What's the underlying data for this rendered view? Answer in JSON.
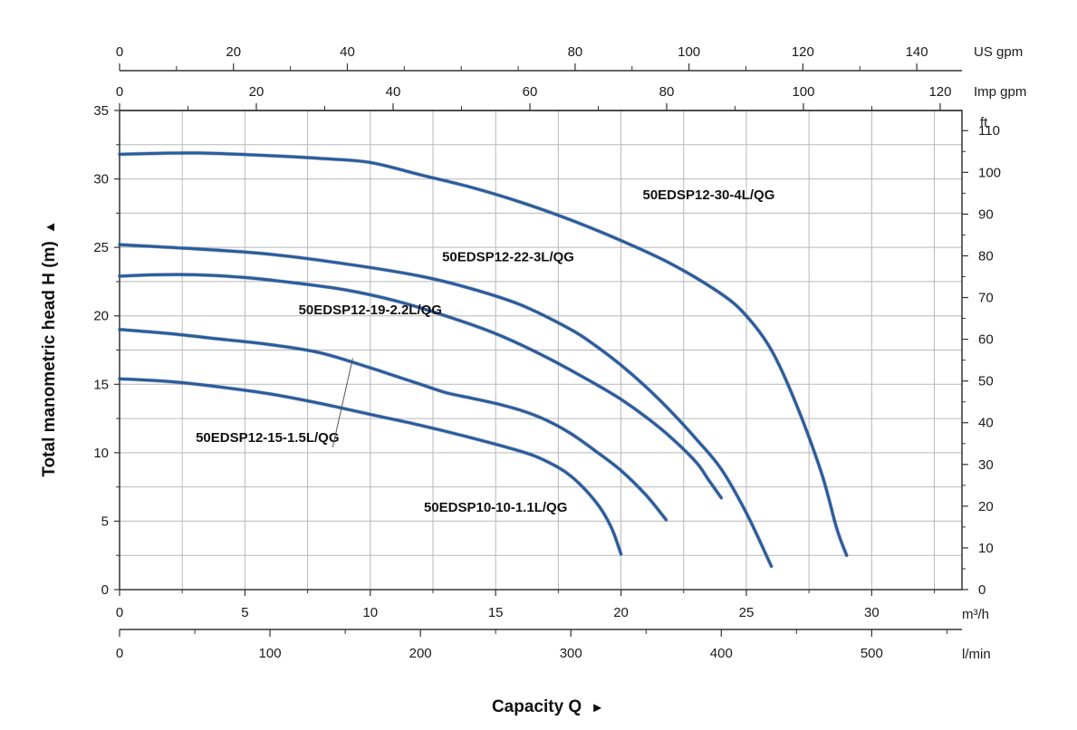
{
  "chart_data": {
    "type": "line",
    "title": "",
    "ylabel": "Total manometric head H (m)",
    "xlabel": "Capacity Q",
    "xlim": [
      0,
      33.6
    ],
    "ylim": [
      0,
      35
    ],
    "grid": true,
    "axes": {
      "x_primary": {
        "unit": "m³/h",
        "ticks": [
          0,
          5,
          10,
          15,
          20,
          25,
          30
        ],
        "minor_step": 2.5
      },
      "x_lmin": {
        "unit": "l/min",
        "ticks": [
          0,
          100,
          200,
          300,
          400,
          500
        ],
        "minor_step": 50,
        "factor": 16.6667
      },
      "x_us_gpm": {
        "unit": "US gpm",
        "ticks": [
          0,
          20,
          40,
          80,
          100,
          120,
          140
        ],
        "minor_step": 10,
        "factor": 4.4029
      },
      "x_imp_gpm": {
        "unit": "Imp gpm",
        "ticks": [
          0,
          20,
          40,
          60,
          80,
          100,
          120
        ],
        "minor_step": 10,
        "factor": 3.6662
      },
      "y_primary": {
        "unit": "m",
        "ticks": [
          0,
          5,
          10,
          15,
          20,
          25,
          30,
          35
        ],
        "minor_step": 2.5
      },
      "y_ft": {
        "unit": "ft",
        "ticks": [
          0,
          10,
          20,
          30,
          40,
          50,
          60,
          70,
          80,
          90,
          100,
          110
        ],
        "factor": 3.2808
      }
    },
    "series": [
      {
        "name": "50EDSP12-30-4L/QG",
        "label_at": [
          23.5,
          28.5
        ],
        "points": [
          [
            0,
            31.8
          ],
          [
            3,
            31.9
          ],
          [
            6,
            31.7
          ],
          [
            8,
            31.5
          ],
          [
            10,
            31.2
          ],
          [
            12,
            30.3
          ],
          [
            14,
            29.4
          ],
          [
            16,
            28.3
          ],
          [
            18,
            27.0
          ],
          [
            20,
            25.5
          ],
          [
            22,
            23.8
          ],
          [
            24,
            21.6
          ],
          [
            25,
            20.0
          ],
          [
            26,
            17.5
          ],
          [
            27,
            13.5
          ],
          [
            28,
            8.5
          ],
          [
            28.6,
            4.5
          ],
          [
            29,
            2.5
          ]
        ]
      },
      {
        "name": "50EDSP12-22-3L/QG",
        "label_at": [
          15.5,
          24.0
        ],
        "points": [
          [
            0,
            25.2
          ],
          [
            3,
            24.9
          ],
          [
            6,
            24.5
          ],
          [
            9,
            23.8
          ],
          [
            12,
            22.9
          ],
          [
            14,
            22.0
          ],
          [
            16,
            20.8
          ],
          [
            18,
            19.0
          ],
          [
            19,
            17.8
          ],
          [
            20,
            16.4
          ],
          [
            21,
            14.8
          ],
          [
            22,
            13.0
          ],
          [
            23,
            11.0
          ],
          [
            24,
            8.8
          ],
          [
            25,
            5.6
          ],
          [
            26,
            1.7
          ]
        ]
      },
      {
        "name": "50EDSP12-19-2.2L/QG",
        "label_at": [
          10,
          20.1
        ],
        "points": [
          [
            0,
            22.9
          ],
          [
            1.5,
            23.0
          ],
          [
            3,
            23.0
          ],
          [
            5,
            22.8
          ],
          [
            7,
            22.4
          ],
          [
            9,
            21.9
          ],
          [
            11,
            21.1
          ],
          [
            13,
            20.0
          ],
          [
            15,
            18.7
          ],
          [
            17,
            17.0
          ],
          [
            19,
            15.0
          ],
          [
            20,
            13.9
          ],
          [
            21,
            12.6
          ],
          [
            22,
            11.1
          ],
          [
            23,
            9.3
          ],
          [
            23.5,
            8.0
          ],
          [
            24,
            6.7
          ]
        ]
      },
      {
        "name": "50EDSP12-15-1.5L/QG",
        "label_at": [
          5.9,
          10.8
        ],
        "points": [
          [
            0,
            19.0
          ],
          [
            2,
            18.7
          ],
          [
            4,
            18.3
          ],
          [
            6,
            17.9
          ],
          [
            8,
            17.3
          ],
          [
            10,
            16.2
          ],
          [
            11,
            15.6
          ],
          [
            12,
            15.0
          ],
          [
            13,
            14.4
          ],
          [
            14,
            14.0
          ],
          [
            15,
            13.6
          ],
          [
            16,
            13.1
          ],
          [
            17,
            12.4
          ],
          [
            18,
            11.4
          ],
          [
            19,
            10.1
          ],
          [
            20,
            8.7
          ],
          [
            21,
            6.9
          ],
          [
            21.8,
            5.1
          ]
        ]
      },
      {
        "name": "50EDSP10-10-1.1L/QG",
        "label_at": [
          15,
          5.7
        ],
        "points": [
          [
            0,
            15.4
          ],
          [
            2,
            15.2
          ],
          [
            4,
            14.8
          ],
          [
            6,
            14.3
          ],
          [
            8,
            13.6
          ],
          [
            10,
            12.8
          ],
          [
            12,
            12.0
          ],
          [
            14,
            11.1
          ],
          [
            16,
            10.1
          ],
          [
            17,
            9.4
          ],
          [
            18,
            8.3
          ],
          [
            19,
            6.4
          ],
          [
            19.6,
            4.6
          ],
          [
            20,
            2.6
          ]
        ]
      }
    ],
    "annotations": [
      {
        "text": "50EDSP12-15-1.5L/QG",
        "leader_from": [
          8.5,
          10.4
        ],
        "leader_to": [
          9.3,
          16.9
        ]
      }
    ]
  },
  "labels": {
    "y_title": "Total manometric head H (m)",
    "y_arrow": "▲",
    "x_title": "Capacity Q",
    "x_arrow": "►",
    "unit_m3h": "m³/h",
    "unit_lmin": "l/min",
    "unit_us_gpm": "US gpm",
    "unit_imp_gpm": "Imp gpm",
    "unit_ft": "ft"
  },
  "colors": {
    "curve": "#2a5c9e",
    "grid": "#b8b8b8",
    "axis": "#333333",
    "text": "#1a1a1a"
  }
}
